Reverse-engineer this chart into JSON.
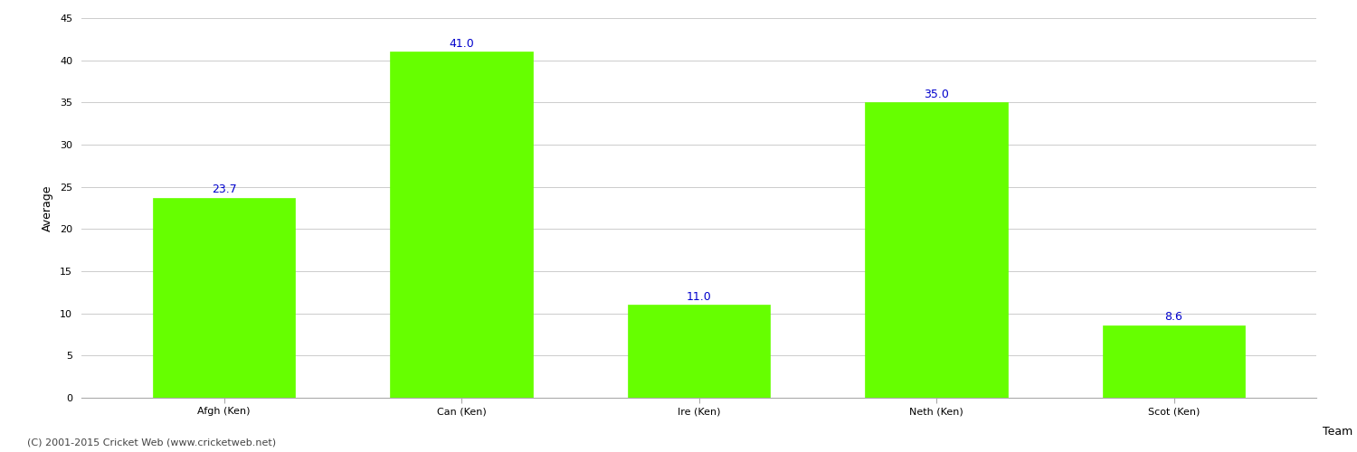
{
  "categories": [
    "Afgh (Ken)",
    "Can (Ken)",
    "Ire (Ken)",
    "Neth (Ken)",
    "Scot (Ken)"
  ],
  "values": [
    23.7,
    41.0,
    11.0,
    35.0,
    8.6
  ],
  "bar_color": "#66ff00",
  "bar_edge_color": "#66ff00",
  "label_color": "#0000cc",
  "ylabel": "Average",
  "xlabel": "Team",
  "ylim": [
    0,
    45
  ],
  "yticks": [
    0,
    5,
    10,
    15,
    20,
    25,
    30,
    35,
    40,
    45
  ],
  "background_color": "#ffffff",
  "grid_color": "#cccccc",
  "label_fontsize": 9,
  "axis_label_fontsize": 9,
  "tick_fontsize": 8,
  "bar_width": 0.6,
  "footer_text": "(C) 2001-2015 Cricket Web (www.cricketweb.net)",
  "footer_fontsize": 8,
  "footer_color": "#444444"
}
